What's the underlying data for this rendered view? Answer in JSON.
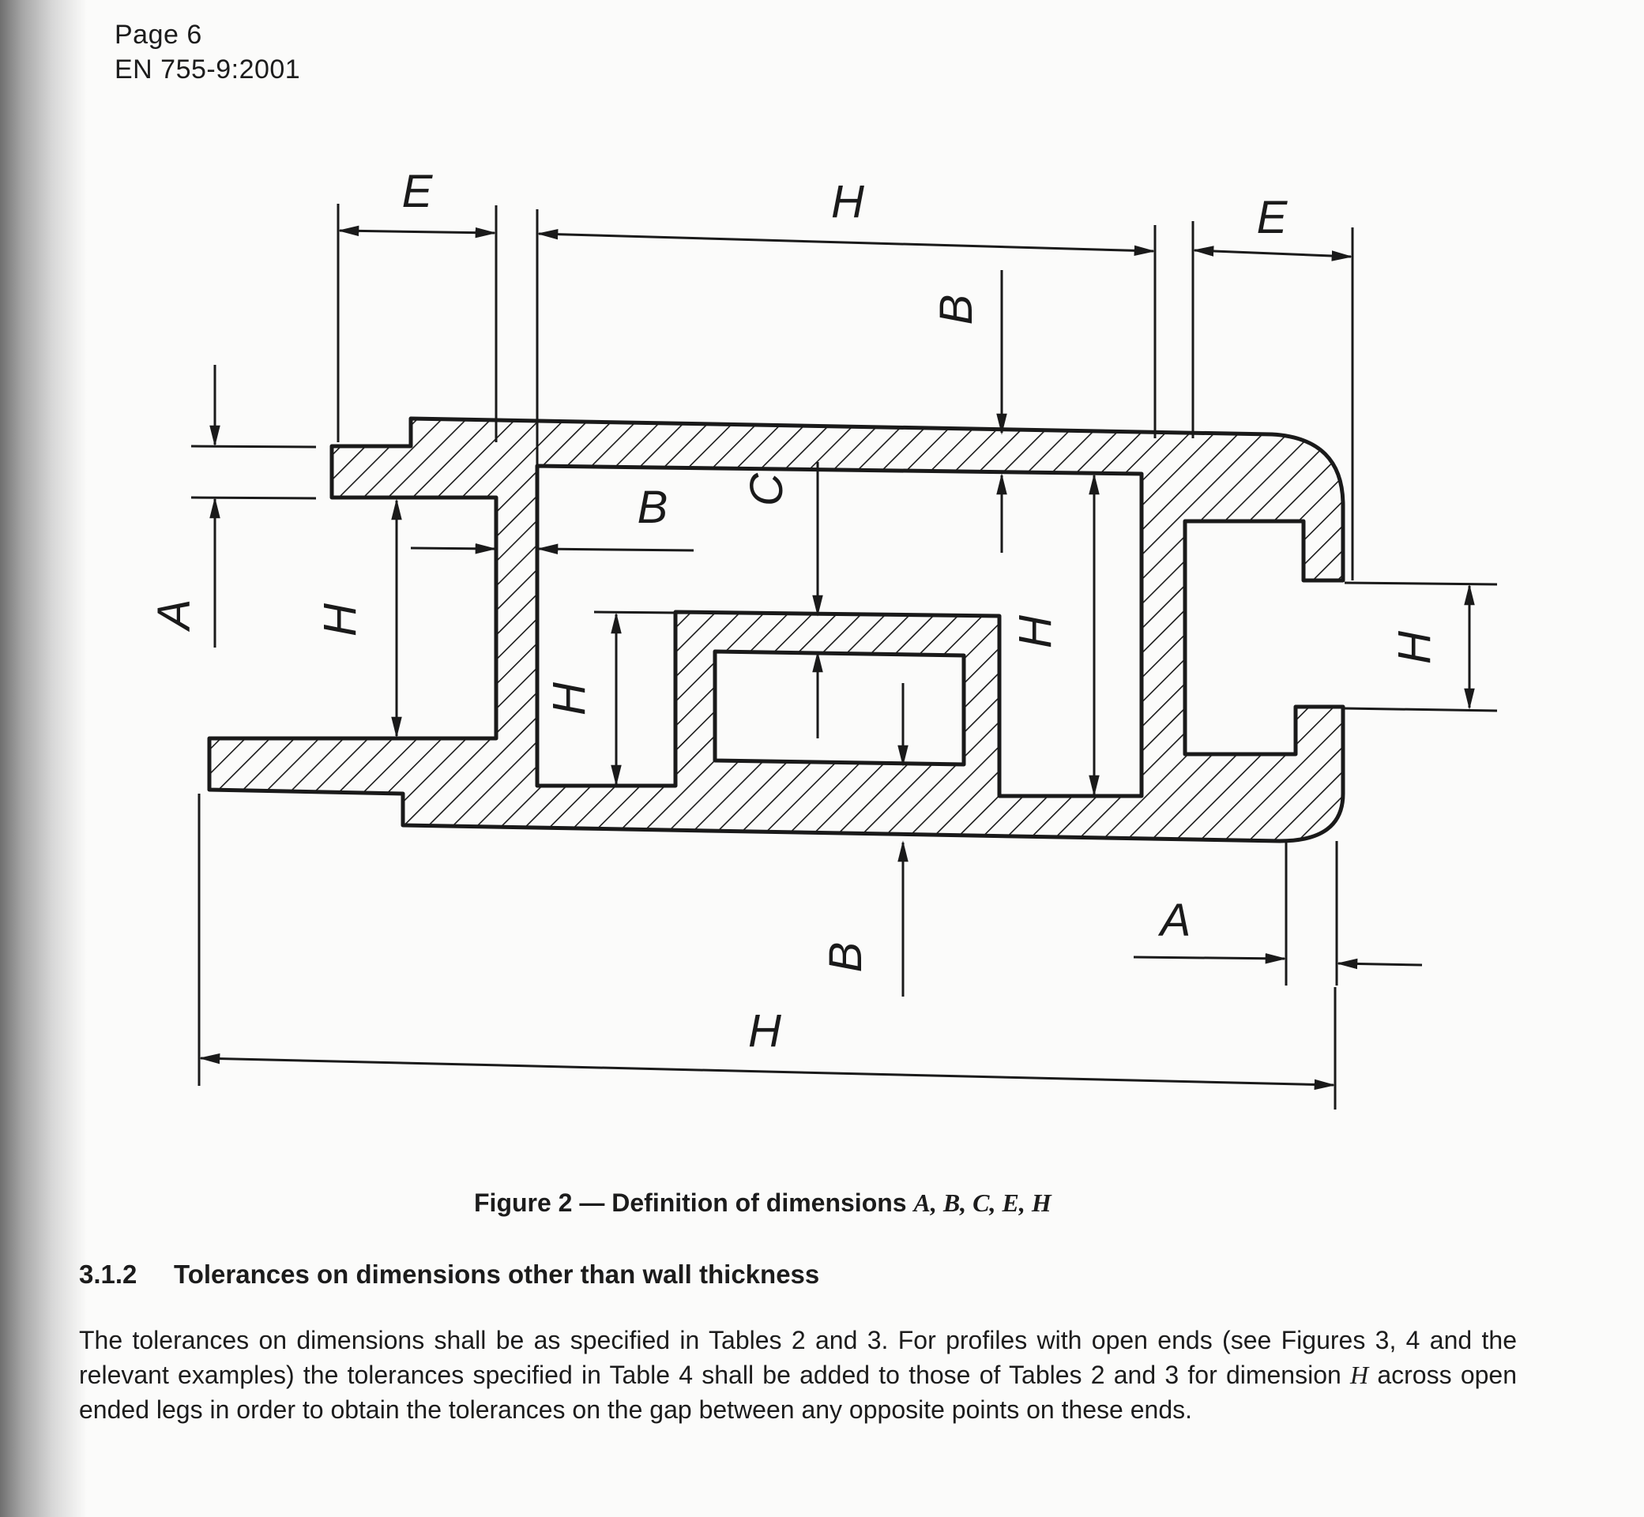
{
  "header": {
    "page_number": "Page 6",
    "standard": "EN 755-9:2001"
  },
  "figure": {
    "labels": {
      "e_left": "E",
      "h_top": "H",
      "e_right": "E",
      "b_top": "B",
      "b_inner": "B",
      "c_inner": "C",
      "a_left": "A",
      "h_left_gap": "H",
      "h_inner_channel": "H",
      "h_right_inner": "H",
      "h_right_gap": "H",
      "a_right": "A",
      "b_bottom": "B",
      "h_overall": "H"
    },
    "caption_prefix": "Figure 2 — Definition of dimensions ",
    "caption_vars": "A, B, C, E, H"
  },
  "section": {
    "number": "3.1.2",
    "title": "Tolerances on dimensions other than wall thickness"
  },
  "paragraph": {
    "part1": "The tolerances on dimensions shall be as specified in Tables 2 and 3. For profiles with open ends (see Figures 3, 4 and the relevant examples) the tolerances specified in Table 4 shall be added to those of Tables 2 and 3 for dimension ",
    "var": "H",
    "part2": " across open ended legs in order to obtain the tolerances on the gap between any opposite points on these ends."
  }
}
